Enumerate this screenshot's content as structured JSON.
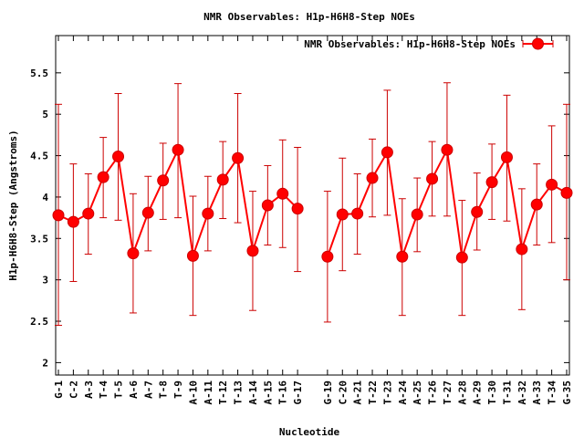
{
  "chart_data": {
    "type": "line",
    "title": "NMR Observables: H1p-H6H8-Step NOEs",
    "xlabel": "Nucleotide",
    "ylabel": "H1p-H6H8-Step (Angstroms)",
    "ylim": [
      1.85,
      5.95
    ],
    "yticks": [
      2,
      2.5,
      3,
      3.5,
      4,
      4.5,
      5,
      5.5
    ],
    "ytick_labels": [
      "2",
      "2.5",
      "3",
      "3.5",
      "4",
      "4.5",
      "5",
      "5.5"
    ],
    "grid": false,
    "legend": "top-right",
    "series_color": "#ff0000",
    "error_color": "#cc0000",
    "series": [
      {
        "name": "NMR Observables: H1p-H6H8-Step NOEs",
        "points": [
          {
            "label": "G-1",
            "x": 1,
            "y": 3.78,
            "lo": 2.45,
            "hi": 5.12
          },
          {
            "label": "C-2",
            "x": 2,
            "y": 3.7,
            "lo": 2.98,
            "hi": 4.4
          },
          {
            "label": "A-3",
            "x": 3,
            "y": 3.8,
            "lo": 3.31,
            "hi": 4.28
          },
          {
            "label": "T-4",
            "x": 4,
            "y": 4.24,
            "lo": 3.75,
            "hi": 4.72
          },
          {
            "label": "T-5",
            "x": 5,
            "y": 4.49,
            "lo": 3.72,
            "hi": 5.25
          },
          {
            "label": "A-6",
            "x": 6,
            "y": 3.32,
            "lo": 2.6,
            "hi": 4.04
          },
          {
            "label": "A-7",
            "x": 7,
            "y": 3.81,
            "lo": 3.35,
            "hi": 4.25
          },
          {
            "label": "T-8",
            "x": 8,
            "y": 4.2,
            "lo": 3.73,
            "hi": 4.65
          },
          {
            "label": "T-9",
            "x": 9,
            "y": 4.57,
            "lo": 3.75,
            "hi": 5.37
          },
          {
            "label": "A-10",
            "x": 10,
            "y": 3.29,
            "lo": 2.57,
            "hi": 4.01
          },
          {
            "label": "A-11",
            "x": 11,
            "y": 3.8,
            "lo": 3.35,
            "hi": 4.25
          },
          {
            "label": "T-12",
            "x": 12,
            "y": 4.21,
            "lo": 3.74,
            "hi": 4.67
          },
          {
            "label": "T-13",
            "x": 13,
            "y": 4.47,
            "lo": 3.69,
            "hi": 5.25
          },
          {
            "label": "A-14",
            "x": 14,
            "y": 3.35,
            "lo": 2.63,
            "hi": 4.07
          },
          {
            "label": "A-15",
            "x": 15,
            "y": 3.9,
            "lo": 3.42,
            "hi": 4.38
          },
          {
            "label": "T-16",
            "x": 16,
            "y": 4.04,
            "lo": 3.39,
            "hi": 4.69
          },
          {
            "label": "G-17",
            "x": 17,
            "y": 3.86,
            "lo": 3.1,
            "hi": 4.6
          },
          {
            "label": "G-19",
            "x": 19,
            "y": 3.28,
            "lo": 2.49,
            "hi": 4.07
          },
          {
            "label": "C-20",
            "x": 20,
            "y": 3.79,
            "lo": 3.11,
            "hi": 4.47
          },
          {
            "label": "A-21",
            "x": 21,
            "y": 3.8,
            "lo": 3.31,
            "hi": 4.28
          },
          {
            "label": "T-22",
            "x": 22,
            "y": 4.23,
            "lo": 3.76,
            "hi": 4.7
          },
          {
            "label": "T-23",
            "x": 23,
            "y": 4.54,
            "lo": 3.78,
            "hi": 5.29
          },
          {
            "label": "A-24",
            "x": 24,
            "y": 3.28,
            "lo": 2.57,
            "hi": 3.98
          },
          {
            "label": "A-25",
            "x": 25,
            "y": 3.79,
            "lo": 3.34,
            "hi": 4.23
          },
          {
            "label": "T-26",
            "x": 26,
            "y": 4.22,
            "lo": 3.77,
            "hi": 4.67
          },
          {
            "label": "T-27",
            "x": 27,
            "y": 4.57,
            "lo": 3.77,
            "hi": 5.38
          },
          {
            "label": "A-28",
            "x": 28,
            "y": 3.27,
            "lo": 2.57,
            "hi": 3.96
          },
          {
            "label": "A-29",
            "x": 29,
            "y": 3.82,
            "lo": 3.36,
            "hi": 4.29
          },
          {
            "label": "T-30",
            "x": 30,
            "y": 4.18,
            "lo": 3.73,
            "hi": 4.64
          },
          {
            "label": "T-31",
            "x": 31,
            "y": 4.48,
            "lo": 3.71,
            "hi": 5.23
          },
          {
            "label": "A-32",
            "x": 32,
            "y": 3.37,
            "lo": 2.64,
            "hi": 4.1
          },
          {
            "label": "A-33",
            "x": 33,
            "y": 3.91,
            "lo": 3.42,
            "hi": 4.4
          },
          {
            "label": "T-34",
            "x": 34,
            "y": 4.15,
            "lo": 3.45,
            "hi": 4.86
          },
          {
            "label": "G-35",
            "x": 35,
            "y": 4.05,
            "lo": 3.0,
            "hi": 5.12
          }
        ]
      }
    ]
  }
}
